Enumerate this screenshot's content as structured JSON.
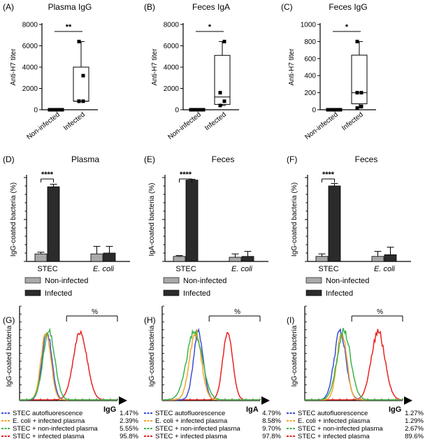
{
  "figure": {
    "colors": {
      "non_infected": "#a9a9a9",
      "infected": "#2b2b2b",
      "blue": "#3b4fd6",
      "orange": "#f5a52a",
      "green": "#3cb44b",
      "red": "#e8231f"
    }
  },
  "chart_data": [
    {
      "panel": "(A)",
      "type": "box",
      "title": "Plasma IgG",
      "ylabel": "Anti-H7 titer",
      "ylim": [
        0,
        8000
      ],
      "yticks": [
        "0",
        "2000",
        "4000",
        "6000",
        "8000"
      ],
      "categories": [
        "Non-infected",
        "Infected"
      ],
      "groups": [
        {
          "name": "Non-infected",
          "min": 0,
          "q1": 0,
          "median": 0,
          "q3": 0,
          "max": 0,
          "points": [
            0,
            0,
            0,
            0,
            0
          ]
        },
        {
          "name": "Infected",
          "min": 800,
          "q1": 800,
          "median": 800,
          "q3": 4000,
          "max": 6400,
          "points": [
            800,
            800,
            800,
            3200,
            6400
          ]
        }
      ],
      "significance": "**"
    },
    {
      "panel": "(B)",
      "type": "box",
      "title": "Feces IgA",
      "ylabel": "Anti-H7 titer",
      "ylim": [
        0,
        8000
      ],
      "yticks": [
        "0",
        "2000",
        "4000",
        "6000",
        "8000"
      ],
      "categories": [
        "Non-infected",
        "Infected"
      ],
      "groups": [
        {
          "name": "Non-infected",
          "min": 0,
          "q1": 0,
          "median": 0,
          "q3": 0,
          "max": 0,
          "points": [
            0,
            0,
            0,
            0,
            0
          ]
        },
        {
          "name": "Infected",
          "min": 400,
          "q1": 500,
          "median": 1200,
          "q3": 5100,
          "max": 6400,
          "points": [
            400,
            800,
            1600,
            6400
          ]
        }
      ],
      "significance": "*"
    },
    {
      "panel": "(C)",
      "type": "box",
      "title": "Feces IgG",
      "ylabel": "Anti-H7 titer",
      "ylim": [
        0,
        1000
      ],
      "yticks": [
        "0",
        "200",
        "400",
        "600",
        "800",
        "1000"
      ],
      "categories": [
        "Non-infected",
        "Infected"
      ],
      "groups": [
        {
          "name": "Non-infected",
          "min": 0,
          "q1": 0,
          "median": 0,
          "q3": 0,
          "max": 0,
          "points": [
            0,
            0,
            0,
            0,
            0
          ]
        },
        {
          "name": "Infected",
          "min": 20,
          "q1": 70,
          "median": 200,
          "q3": 640,
          "max": 800,
          "points": [
            20,
            40,
            200,
            200,
            800
          ]
        }
      ],
      "significance": "*"
    },
    {
      "panel": "(D)",
      "type": "bar",
      "title": "Plasma",
      "ylabel": "IgG-coated bacteria (%)",
      "ylim": [
        0,
        100
      ],
      "categories": [
        "STEC",
        "E. coli"
      ],
      "series": [
        {
          "name": "Non-infected",
          "values": [
            9,
            9
          ],
          "errors": [
            2,
            9
          ]
        },
        {
          "name": "Infected",
          "values": [
            89,
            10
          ],
          "errors": [
            3,
            8
          ]
        }
      ],
      "significance": "****",
      "legend": [
        "Non-infected",
        "Infected"
      ]
    },
    {
      "panel": "(E)",
      "type": "bar",
      "title": "Feces",
      "ylabel": "IgA-coated bacteria (%)",
      "ylim": [
        0,
        100
      ],
      "categories": [
        "STEC",
        "E. coli"
      ],
      "series": [
        {
          "name": "Non-infected",
          "values": [
            6,
            5
          ],
          "errors": [
            1,
            4
          ]
        },
        {
          "name": "Infected",
          "values": [
            97,
            6
          ],
          "errors": [
            1,
            6
          ]
        }
      ],
      "significance": "****",
      "legend": [
        "Non-infected",
        "Infected"
      ]
    },
    {
      "panel": "(F)",
      "type": "bar",
      "title": "Feces",
      "ylabel": "IgG-coated bacteria (%)",
      "ylim": [
        0,
        100
      ],
      "categories": [
        "STEC",
        "E. coli"
      ],
      "series": [
        {
          "name": "Non-infected",
          "values": [
            6,
            6
          ],
          "errors": [
            3,
            6
          ]
        },
        {
          "name": "Infected",
          "values": [
            90,
            8
          ],
          "errors": [
            3,
            9
          ]
        }
      ],
      "significance": "****",
      "legend": [
        "Non-infected",
        "Infected"
      ]
    },
    {
      "panel": "(G)",
      "type": "line",
      "ylabel": "IgG-coated bacteria",
      "xlabel": "IgG",
      "gate_label": "%",
      "series": [
        {
          "name": "STEC autofluorescence",
          "percent": "1.47%",
          "color": "blue",
          "peak": 0.28,
          "width": 0.05,
          "noise": 0.1
        },
        {
          "name": "E. coli + infected plasma",
          "percent": "2.39%",
          "color": "orange",
          "peak": 0.27,
          "width": 0.05,
          "noise": 0.12
        },
        {
          "name": "STEC + non-infected plasma",
          "percent": "5.55%",
          "color": "green",
          "peak": 0.3,
          "width": 0.06,
          "noise": 0.1
        },
        {
          "name": "STEC + infected plasma",
          "percent": "95.8%",
          "color": "red",
          "peak": 0.62,
          "width": 0.07,
          "noise": 0.08
        }
      ]
    },
    {
      "panel": "(H)",
      "type": "line",
      "ylabel": "IgG-coated bacteria",
      "xlabel": "IgA",
      "gate_label": "%",
      "series": [
        {
          "name": "STEC autofluorescence",
          "percent": "4.79%",
          "color": "blue",
          "peak": 0.37,
          "width": 0.05,
          "noise": 0.1
        },
        {
          "name": "E. coli + infected plasma",
          "percent": "8.58%",
          "color": "orange",
          "peak": 0.34,
          "width": 0.06,
          "noise": 0.12
        },
        {
          "name": "STEC + non-infected plasma",
          "percent": "9.70%",
          "color": "green",
          "peak": 0.33,
          "width": 0.08,
          "noise": 0.1
        },
        {
          "name": "STEC + infected plasma",
          "percent": "97.8%",
          "color": "red",
          "peak": 0.67,
          "width": 0.05,
          "noise": 0.06
        }
      ]
    },
    {
      "panel": "(I)",
      "type": "line",
      "ylabel": "IgG-coated bacteria",
      "xlabel": "IgG",
      "gate_label": "%",
      "series": [
        {
          "name": "STEC autofluorescence",
          "percent": "1.27%",
          "color": "blue",
          "peak": 0.36,
          "width": 0.06,
          "noise": 0.15
        },
        {
          "name": "E. coli + infected plasma",
          "percent": "1.29%",
          "color": "orange",
          "peak": 0.38,
          "width": 0.05,
          "noise": 0.12
        },
        {
          "name": "STEC + non-infected plasma",
          "percent": "2.67%",
          "color": "green",
          "peak": 0.4,
          "width": 0.07,
          "noise": 0.15
        },
        {
          "name": "STEC + infected plasma",
          "percent": "89.6%",
          "color": "red",
          "peak": 0.75,
          "width": 0.07,
          "noise": 0.12
        }
      ]
    }
  ]
}
